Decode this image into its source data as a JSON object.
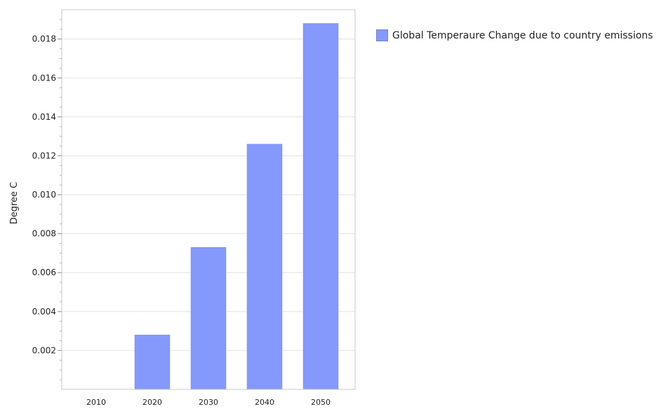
{
  "chart_data": {
    "type": "bar",
    "categories": [
      "2010",
      "2020",
      "2030",
      "2040",
      "2050"
    ],
    "series": [
      {
        "name": "Global Temperaure Change due to country emissions",
        "values": [
          0,
          0.0028,
          0.0073,
          0.0126,
          0.0188
        ],
        "color": "#8499fb"
      }
    ],
    "title": "",
    "xlabel": "",
    "ylabel": "Degree C",
    "ylim": [
      0,
      0.0195
    ],
    "yticks": [
      0.002,
      0.004,
      0.006,
      0.008,
      0.01,
      0.012,
      0.014,
      0.016,
      0.018
    ],
    "ytick_labels": [
      "0.002",
      "0.004",
      "0.006",
      "0.008",
      "0.010",
      "0.012",
      "0.014",
      "0.016",
      "0.018"
    ],
    "grid": true,
    "legend_position": "top-right"
  }
}
